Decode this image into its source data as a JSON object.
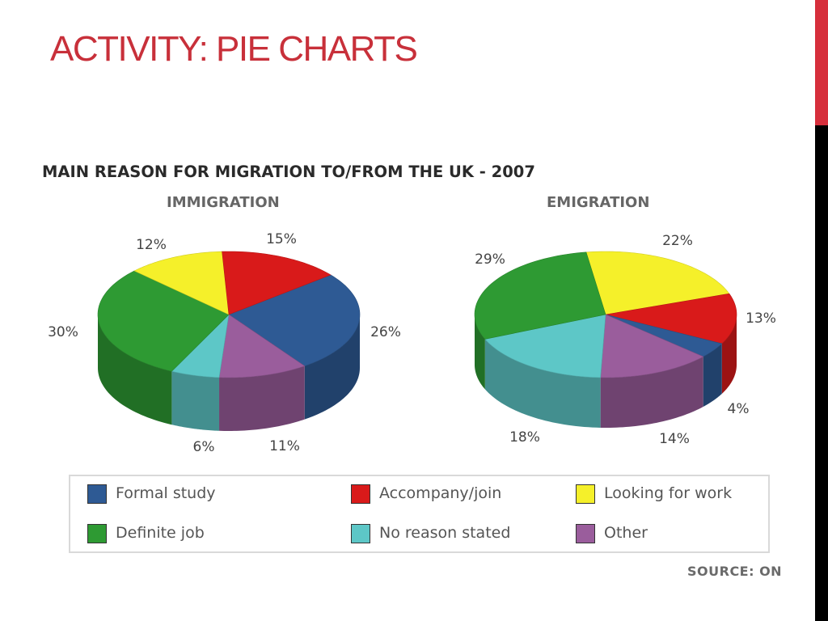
{
  "slide": {
    "title": "ACTIVITY: PIE CHARTS"
  },
  "figure": {
    "title": "MAIN REASON FOR MIGRATION TO/FROM THE UK - 2007",
    "source": "SOURCE: ON"
  },
  "chart_data": [
    {
      "type": "pie",
      "title": "IMMIGRATION",
      "unit": "%",
      "slices": [
        {
          "label": "Formal study",
          "value": 26,
          "color": "#2e5a94"
        },
        {
          "label": "Other",
          "value": 11,
          "color": "#9a5d9c"
        },
        {
          "label": "No reason stated",
          "value": 6,
          "color": "#5dc7c7"
        },
        {
          "label": "Definite job",
          "value": 30,
          "color": "#2e9a33"
        },
        {
          "label": "Looking for work",
          "value": 12,
          "color": "#f5f02a"
        },
        {
          "label": "Accompany/join",
          "value": 15,
          "color": "#d91a1a"
        }
      ]
    },
    {
      "type": "pie",
      "title": "EMIGRATION",
      "unit": "%",
      "slices": [
        {
          "label": "Looking for work",
          "value": 22,
          "color": "#f5f02a"
        },
        {
          "label": "Accompany/join",
          "value": 13,
          "color": "#d91a1a"
        },
        {
          "label": "Formal study",
          "value": 4,
          "color": "#2e5a94"
        },
        {
          "label": "Other",
          "value": 14,
          "color": "#9a5d9c"
        },
        {
          "label": "No reason stated",
          "value": 18,
          "color": "#5dc7c7"
        },
        {
          "label": "Definite job",
          "value": 29,
          "color": "#2e9a33"
        }
      ]
    }
  ],
  "legend": {
    "items": [
      {
        "label": "Formal study",
        "color": "#2e5a94"
      },
      {
        "label": "Accompany/join",
        "color": "#d91a1a"
      },
      {
        "label": "Looking for work",
        "color": "#f5f02a"
      },
      {
        "label": "Definite job",
        "color": "#2e9a33"
      },
      {
        "label": "No reason stated",
        "color": "#5dc7c7"
      },
      {
        "label": "Other",
        "color": "#9a5d9c"
      }
    ]
  }
}
